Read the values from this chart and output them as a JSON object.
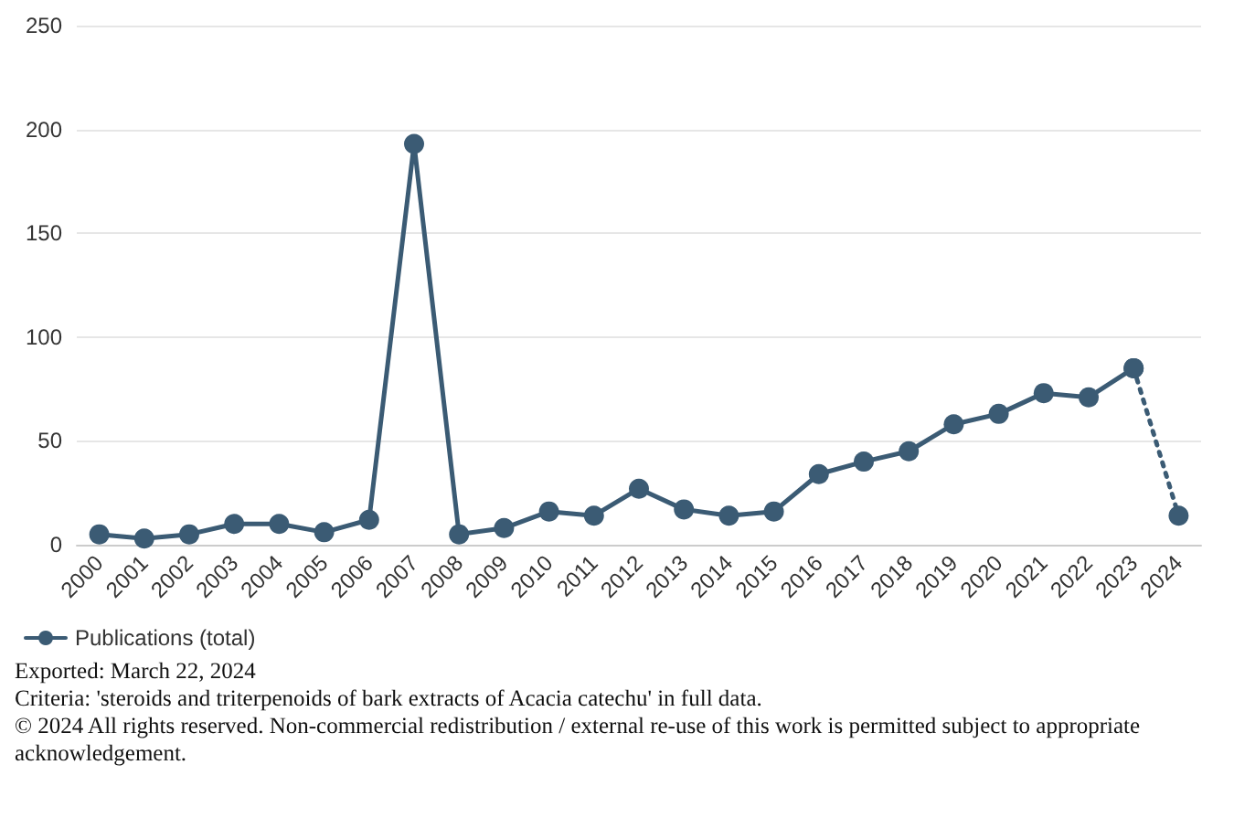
{
  "chart_data": {
    "type": "line",
    "categories": [
      "2000",
      "2001",
      "2002",
      "2003",
      "2004",
      "2005",
      "2006",
      "2007",
      "2008",
      "2009",
      "2010",
      "2011",
      "2012",
      "2013",
      "2014",
      "2015",
      "2016",
      "2017",
      "2018",
      "2019",
      "2020",
      "2021",
      "2022",
      "2023",
      "2024"
    ],
    "series": [
      {
        "name": "Publications (total)",
        "color": "#3b5b74",
        "values": [
          5,
          3,
          5,
          10,
          10,
          6,
          12,
          193,
          5,
          8,
          16,
          14,
          27,
          17,
          14,
          16,
          34,
          40,
          45,
          58,
          63,
          73,
          71,
          85,
          null
        ]
      },
      {
        "color": "#3b5b74",
        "line_style": "dotted",
        "values": [
          null,
          null,
          null,
          null,
          null,
          null,
          null,
          null,
          null,
          null,
          null,
          null,
          null,
          null,
          null,
          null,
          null,
          null,
          null,
          null,
          null,
          null,
          null,
          85,
          14
        ]
      }
    ],
    "ylim": [
      0,
      250
    ],
    "yticks": [
      0,
      50,
      100,
      150,
      200,
      250
    ],
    "grid": "y",
    "legend": "bottom",
    "marker": "circle",
    "line_style": "solid",
    "annotations": [
      "Exported: March 22, 2024",
      "Criteria: 'steroids and triterpenoids of bark extracts of Acacia catechu' in full data.",
      "© 2024 All rights reserved. Non-commercial redistribution / external re-use of this work is permitted subject to appropriate acknowledgement."
    ]
  }
}
